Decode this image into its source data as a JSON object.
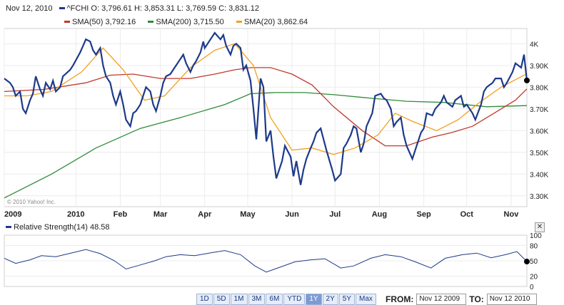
{
  "header": {
    "date": "Nov 12, 2010",
    "symbol": "^FCHI",
    "open_label": "O:",
    "open": "3,796.61",
    "high_label": "H:",
    "high": "3,853.31",
    "low_label": "L:",
    "low": "3,769.59",
    "close_label": "C:",
    "close": "3,831.12"
  },
  "indicators": [
    {
      "label": "SMA(50)",
      "value": "3,792.16",
      "color": "#c0392b"
    },
    {
      "label": "SMA(200)",
      "value": "3,715.50",
      "color": "#2e8b3a"
    },
    {
      "label": "SMA(20)",
      "value": "3,862.64",
      "color": "#f0a020"
    }
  ],
  "watermark": "© 2010 Yahoo! Inc.",
  "price_color": "#1d3a8a",
  "chart_data": [
    {
      "type": "line",
      "y_ticks": [
        "4K",
        "3.90K",
        "3.80K",
        "3.70K",
        "3.60K",
        "3.50K",
        "3.40K",
        "3.30K"
      ],
      "y_tick_values": [
        4000,
        3900,
        3800,
        3700,
        3600,
        3500,
        3400,
        3300
      ],
      "x_ticks": [
        "2009",
        "2010",
        "Feb",
        "Mar",
        "Apr",
        "May",
        "Jun",
        "Jul",
        "Aug",
        "Sep",
        "Oct",
        "Nov"
      ],
      "x_tick_dates": [
        "2009-11-12",
        "2010-01-01",
        "2010-02-01",
        "2010-03-01",
        "2010-04-01",
        "2010-05-01",
        "2010-06-01",
        "2010-07-01",
        "2010-08-01",
        "2010-09-01",
        "2010-10-01",
        "2010-11-01"
      ],
      "ylim": [
        3250,
        4070
      ],
      "xlim": [
        "2009-11-12",
        "2010-11-12"
      ],
      "series": [
        {
          "name": "^FCHI",
          "color": "#1d3a8a",
          "x": [
            "2009-11-12",
            "2009-11-16",
            "2009-11-18",
            "2009-11-20",
            "2009-11-23",
            "2009-11-25",
            "2009-11-27",
            "2009-11-30",
            "2009-12-02",
            "2009-12-04",
            "2009-12-07",
            "2009-12-09",
            "2009-12-11",
            "2009-12-14",
            "2009-12-16",
            "2009-12-18",
            "2009-12-21",
            "2009-12-23",
            "2009-12-28",
            "2009-12-30",
            "2010-01-04",
            "2010-01-06",
            "2010-01-08",
            "2010-01-11",
            "2010-01-13",
            "2010-01-15",
            "2010-01-18",
            "2010-01-20",
            "2010-01-22",
            "2010-01-25",
            "2010-01-27",
            "2010-01-29",
            "2010-02-01",
            "2010-02-03",
            "2010-02-05",
            "2010-02-08",
            "2010-02-10",
            "2010-02-12",
            "2010-02-15",
            "2010-02-17",
            "2010-02-19",
            "2010-02-22",
            "2010-02-24",
            "2010-02-26",
            "2010-03-01",
            "2010-03-03",
            "2010-03-05",
            "2010-03-08",
            "2010-03-10",
            "2010-03-12",
            "2010-03-15",
            "2010-03-17",
            "2010-03-19",
            "2010-03-22",
            "2010-03-24",
            "2010-03-26",
            "2010-03-29",
            "2010-03-31",
            "2010-04-01",
            "2010-04-06",
            "2010-04-08",
            "2010-04-12",
            "2010-04-14",
            "2010-04-16",
            "2010-04-19",
            "2010-04-21",
            "2010-04-23",
            "2010-04-26",
            "2010-04-28",
            "2010-04-30",
            "2010-05-03",
            "2010-05-05",
            "2010-05-07",
            "2010-05-10",
            "2010-05-12",
            "2010-05-14",
            "2010-05-17",
            "2010-05-19",
            "2010-05-21",
            "2010-05-25",
            "2010-05-27",
            "2010-05-31",
            "2010-06-02",
            "2010-06-04",
            "2010-06-07",
            "2010-06-09",
            "2010-06-11",
            "2010-06-14",
            "2010-06-16",
            "2010-06-18",
            "2010-06-21",
            "2010-06-23",
            "2010-06-25",
            "2010-06-29",
            "2010-07-01",
            "2010-07-05",
            "2010-07-07",
            "2010-07-09",
            "2010-07-12",
            "2010-07-14",
            "2010-07-16",
            "2010-07-19",
            "2010-07-21",
            "2010-07-23",
            "2010-07-27",
            "2010-07-29",
            "2010-08-02",
            "2010-08-04",
            "2010-08-06",
            "2010-08-09",
            "2010-08-11",
            "2010-08-13",
            "2010-08-16",
            "2010-08-18",
            "2010-08-20",
            "2010-08-24",
            "2010-08-26",
            "2010-08-30",
            "2010-09-01",
            "2010-09-03",
            "2010-09-07",
            "2010-09-09",
            "2010-09-13",
            "2010-09-15",
            "2010-09-17",
            "2010-09-21",
            "2010-09-23",
            "2010-09-27",
            "2010-09-29",
            "2010-10-01",
            "2010-10-05",
            "2010-10-07",
            "2010-10-11",
            "2010-10-13",
            "2010-10-15",
            "2010-10-19",
            "2010-10-21",
            "2010-10-25",
            "2010-10-27",
            "2010-10-29",
            "2010-11-02",
            "2010-11-04",
            "2010-11-08",
            "2010-11-10",
            "2010-11-12"
          ],
          "y": [
            3840,
            3820,
            3800,
            3760,
            3780,
            3700,
            3680,
            3740,
            3770,
            3850,
            3790,
            3760,
            3820,
            3790,
            3830,
            3780,
            3800,
            3850,
            3880,
            3900,
            3960,
            3990,
            4020,
            4010,
            3970,
            3950,
            3980,
            3900,
            3850,
            3820,
            3760,
            3720,
            3780,
            3720,
            3650,
            3620,
            3680,
            3690,
            3720,
            3760,
            3800,
            3780,
            3720,
            3690,
            3760,
            3820,
            3850,
            3860,
            3880,
            3900,
            3930,
            3950,
            3910,
            3870,
            3900,
            3920,
            3960,
            4010,
            3980,
            4030,
            4050,
            4020,
            4040,
            3990,
            3950,
            3990,
            4000,
            3980,
            3880,
            3900,
            3830,
            3700,
            3560,
            3840,
            3800,
            3550,
            3600,
            3480,
            3380,
            3460,
            3530,
            3480,
            3390,
            3460,
            3350,
            3420,
            3470,
            3520,
            3550,
            3590,
            3610,
            3560,
            3510,
            3420,
            3370,
            3400,
            3520,
            3540,
            3580,
            3620,
            3610,
            3500,
            3540,
            3620,
            3680,
            3760,
            3770,
            3750,
            3740,
            3700,
            3620,
            3640,
            3660,
            3580,
            3530,
            3470,
            3510,
            3590,
            3610,
            3680,
            3670,
            3700,
            3730,
            3760,
            3730,
            3710,
            3740,
            3760,
            3710,
            3720,
            3680,
            3650,
            3720,
            3780,
            3800,
            3820,
            3840,
            3840,
            3800,
            3820,
            3870,
            3910,
            3890,
            3950,
            3831
          ]
        },
        {
          "name": "SMA(50)",
          "color": "#c0392b",
          "x": [
            "2009-11-12",
            "2009-12-10",
            "2010-01-08",
            "2010-01-25",
            "2010-02-10",
            "2010-03-01",
            "2010-03-22",
            "2010-04-08",
            "2010-04-22",
            "2010-05-03",
            "2010-05-17",
            "2010-06-01",
            "2010-06-15",
            "2010-06-30",
            "2010-07-20",
            "2010-08-05",
            "2010-08-20",
            "2010-09-07",
            "2010-09-20",
            "2010-10-05",
            "2010-10-20",
            "2010-11-04",
            "2010-11-12"
          ],
          "y": [
            3780,
            3790,
            3820,
            3855,
            3860,
            3840,
            3840,
            3860,
            3880,
            3890,
            3890,
            3860,
            3810,
            3710,
            3600,
            3530,
            3530,
            3570,
            3590,
            3620,
            3680,
            3740,
            3792
          ]
        },
        {
          "name": "SMA(200)",
          "color": "#2e8b3a",
          "x": [
            "2009-11-12",
            "2009-12-15",
            "2010-01-15",
            "2010-02-15",
            "2010-03-15",
            "2010-04-15",
            "2010-05-03",
            "2010-05-20",
            "2010-06-10",
            "2010-07-01",
            "2010-07-25",
            "2010-08-20",
            "2010-09-15",
            "2010-10-15",
            "2010-11-12"
          ],
          "y": [
            3290,
            3400,
            3520,
            3610,
            3660,
            3720,
            3770,
            3775,
            3775,
            3765,
            3750,
            3735,
            3730,
            3710,
            3715
          ]
        },
        {
          "name": "SMA(20)",
          "color": "#f0a020",
          "x": [
            "2009-11-12",
            "2009-11-28",
            "2009-12-15",
            "2010-01-05",
            "2010-01-20",
            "2010-02-03",
            "2010-02-18",
            "2010-03-04",
            "2010-03-22",
            "2010-04-08",
            "2010-04-22",
            "2010-05-05",
            "2010-05-17",
            "2010-06-01",
            "2010-06-15",
            "2010-06-30",
            "2010-07-15",
            "2010-07-31",
            "2010-08-12",
            "2010-08-25",
            "2010-09-10",
            "2010-09-25",
            "2010-10-10",
            "2010-10-25",
            "2010-11-12"
          ],
          "y": [
            3760,
            3760,
            3780,
            3870,
            3980,
            3880,
            3740,
            3760,
            3890,
            3970,
            4000,
            3900,
            3660,
            3510,
            3520,
            3490,
            3520,
            3580,
            3680,
            3640,
            3600,
            3650,
            3730,
            3800,
            3862
          ]
        }
      ]
    },
    {
      "type": "line",
      "title": "Relative Strength(14) 48.58",
      "series_label": "Relative Strength(14)",
      "last_value": "48.58",
      "y_ticks": [
        "100",
        "80",
        "50",
        "20",
        "0"
      ],
      "y_tick_values": [
        100,
        80,
        50,
        20,
        0
      ],
      "ylim": [
        0,
        100
      ],
      "series": [
        {
          "name": "Relative Strength(14)",
          "color": "#1d3a8a",
          "x": [
            "2009-11-12",
            "2009-11-20",
            "2009-11-30",
            "2009-12-08",
            "2009-12-18",
            "2009-12-30",
            "2010-01-08",
            "2010-01-18",
            "2010-01-28",
            "2010-02-05",
            "2010-02-15",
            "2010-02-25",
            "2010-03-05",
            "2010-03-15",
            "2010-03-25",
            "2010-04-06",
            "2010-04-15",
            "2010-04-26",
            "2010-05-06",
            "2010-05-14",
            "2010-05-24",
            "2010-06-03",
            "2010-06-14",
            "2010-06-24",
            "2010-07-05",
            "2010-07-14",
            "2010-07-26",
            "2010-08-05",
            "2010-08-16",
            "2010-08-26",
            "2010-09-06",
            "2010-09-16",
            "2010-09-28",
            "2010-10-08",
            "2010-10-18",
            "2010-10-28",
            "2010-11-05",
            "2010-11-12"
          ],
          "y": [
            55,
            45,
            52,
            60,
            58,
            66,
            72,
            64,
            50,
            34,
            42,
            50,
            58,
            62,
            60,
            66,
            70,
            62,
            40,
            28,
            38,
            48,
            52,
            54,
            36,
            40,
            55,
            62,
            58,
            48,
            36,
            55,
            62,
            65,
            56,
            62,
            68,
            48.58
          ]
        }
      ]
    }
  ],
  "range_buttons": [
    "1D",
    "5D",
    "1M",
    "3M",
    "6M",
    "YTD",
    "1Y",
    "2Y",
    "5Y",
    "Max"
  ],
  "active_range": "1Y",
  "date_range": {
    "from_label": "FROM:",
    "from": "Nov 12 2009",
    "to_label": "TO:",
    "to": "Nov 12 2010"
  }
}
